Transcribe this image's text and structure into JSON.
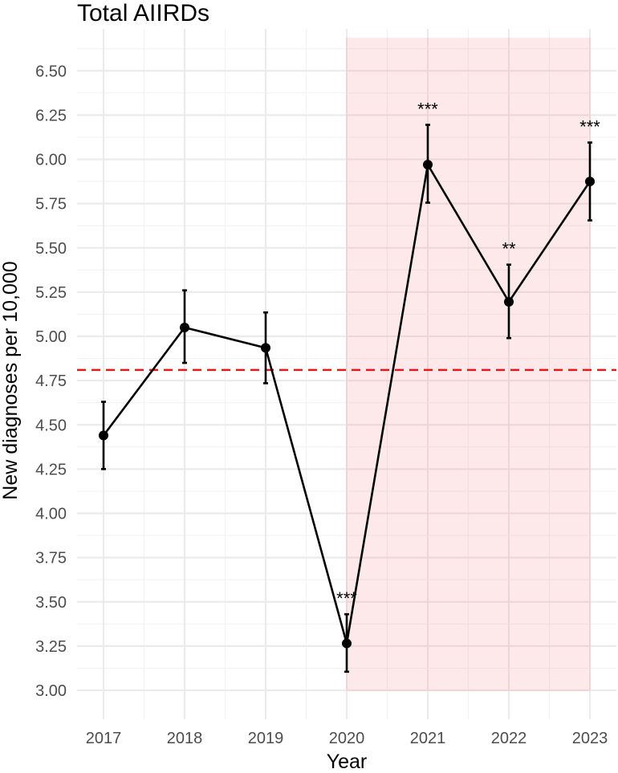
{
  "chart_data": {
    "type": "line",
    "title": "Total AIIRDs",
    "xlabel": "Year",
    "ylabel": "New diagnoses per 10,000",
    "x": [
      "2017",
      "2018",
      "2019",
      "2020",
      "2021",
      "2022",
      "2023"
    ],
    "y_ticks": [
      "3.00",
      "3.25",
      "3.50",
      "3.75",
      "4.00",
      "4.25",
      "4.50",
      "4.75",
      "5.00",
      "5.25",
      "5.50",
      "5.75",
      "6.00",
      "6.25",
      "6.50"
    ],
    "ylim": [
      2.88,
      6.72
    ],
    "series": [
      {
        "values": [
          4.44,
          5.05,
          4.935,
          3.265,
          5.97,
          5.195,
          5.875
        ],
        "lower": [
          4.25,
          4.85,
          4.735,
          3.105,
          5.755,
          4.99,
          5.655
        ],
        "upper": [
          4.63,
          5.26,
          5.135,
          3.43,
          6.195,
          5.405,
          6.095
        ],
        "significance": [
          "",
          "",
          "",
          "***",
          "***",
          "**",
          "***"
        ]
      }
    ],
    "reference_line": {
      "y": 4.81,
      "style": "dashed",
      "color": "#e31a1c"
    },
    "shaded_region": {
      "x_start": "2020",
      "x_end": "2023",
      "color": "#fde5e5"
    },
    "grid": true,
    "legend": "none"
  }
}
